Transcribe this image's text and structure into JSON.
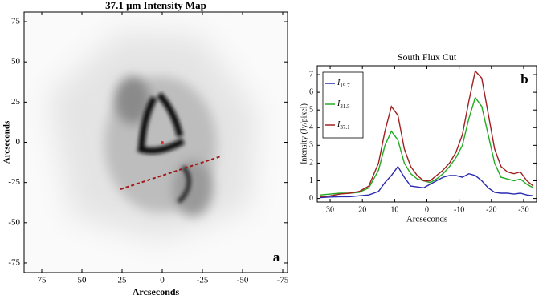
{
  "chart_data": [
    {
      "type": "image",
      "title": "37.1 μm Intensity Map",
      "x_label": "Arcseconds",
      "y_label": "Arcseconds",
      "panel_label": "a",
      "xlim": [
        86,
        -78
      ],
      "xticks": [
        75,
        50,
        25,
        0,
        -25,
        -50,
        -75
      ],
      "ylim": [
        -81,
        81
      ],
      "yticks": [
        75,
        50,
        25,
        0,
        -25,
        -50,
        -75
      ]
    },
    {
      "type": "line",
      "title": "South Flux Cut",
      "x_label": "Arcseconds",
      "y_label": "Intensity (Jy/pixel)",
      "panel_label": "b",
      "legend": "upper left",
      "xlim": [
        34,
        -34
      ],
      "xticks": [
        30,
        20,
        10,
        0,
        -10,
        -20,
        -30
      ],
      "ylim": [
        -0.2,
        7.5
      ],
      "yticks": [
        0,
        1,
        2,
        3,
        4,
        5,
        6,
        7
      ],
      "x": [
        33,
        30,
        27,
        24,
        21,
        18,
        15,
        13,
        11,
        9,
        7,
        5,
        3,
        1,
        -1,
        -3,
        -5,
        -7,
        -9,
        -11,
        -13,
        -15,
        -17,
        -19,
        -21,
        -23,
        -25,
        -27,
        -29,
        -31,
        -33
      ],
      "series": [
        {
          "name": "I19.7",
          "color": "#2b2bb0",
          "values": [
            0.05,
            0.08,
            0.1,
            0.1,
            0.15,
            0.2,
            0.4,
            0.9,
            1.3,
            1.8,
            1.2,
            0.7,
            0.65,
            0.6,
            0.8,
            1.0,
            1.2,
            1.3,
            1.3,
            1.2,
            1.4,
            1.3,
            1.0,
            0.6,
            0.35,
            0.3,
            0.3,
            0.25,
            0.3,
            0.2,
            0.15
          ]
        },
        {
          "name": "I31.5",
          "color": "#22aa22",
          "values": [
            0.2,
            0.25,
            0.3,
            0.3,
            0.35,
            0.6,
            1.6,
            3.0,
            3.8,
            3.3,
            2.0,
            1.4,
            1.1,
            1.0,
            0.9,
            1.1,
            1.4,
            1.8,
            2.3,
            3.0,
            4.5,
            5.7,
            5.2,
            3.6,
            2.0,
            1.2,
            1.1,
            1.0,
            1.1,
            0.8,
            0.6
          ]
        },
        {
          "name": "I37.1",
          "color": "#a02020",
          "values": [
            0.1,
            0.15,
            0.25,
            0.3,
            0.4,
            0.7,
            2.0,
            3.8,
            5.2,
            4.7,
            2.8,
            1.8,
            1.3,
            1.0,
            1.0,
            1.3,
            1.6,
            2.0,
            2.6,
            3.6,
            5.5,
            7.2,
            6.8,
            4.8,
            2.8,
            1.8,
            1.5,
            1.4,
            1.5,
            1.0,
            0.7
          ]
        }
      ]
    }
  ]
}
